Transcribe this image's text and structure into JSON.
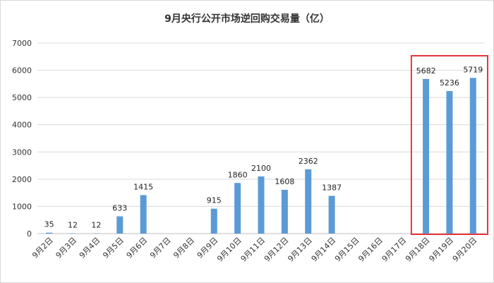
{
  "chart_data": {
    "type": "bar",
    "title": "9月央行公开市场逆回购交易量（亿）",
    "categories": [
      "9月2日",
      "9月3日",
      "9月4日",
      "9月5日",
      "9月6日",
      "9月7日",
      "9月8日",
      "9月9日",
      "9月10日",
      "9月11日",
      "9月12日",
      "9月13日",
      "9月14日",
      "9月15日",
      "9月16日",
      "9月17日",
      "9月18日",
      "9月19日",
      "9月20日"
    ],
    "values": [
      35,
      12,
      12,
      633,
      1415,
      null,
      null,
      915,
      1860,
      2100,
      1608,
      2362,
      1387,
      null,
      null,
      null,
      5682,
      5236,
      5719
    ],
    "data_labels": [
      "35",
      "12",
      "12",
      "633",
      "1415",
      "",
      "",
      "915",
      "1860",
      "2100",
      "1608",
      "2362",
      "1387",
      "",
      "",
      "",
      "5682",
      "5236",
      "5719"
    ],
    "yticks": [
      "0",
      "1000",
      "2000",
      "3000",
      "4000",
      "5000",
      "6000",
      "7000"
    ],
    "ylim": [
      0,
      7000
    ],
    "grid": true,
    "legend": "none",
    "bar_color": "#5b9bd5",
    "highlight_color": "#e8363a",
    "highlight_range": [
      "9月18日",
      "9月20日"
    ]
  }
}
